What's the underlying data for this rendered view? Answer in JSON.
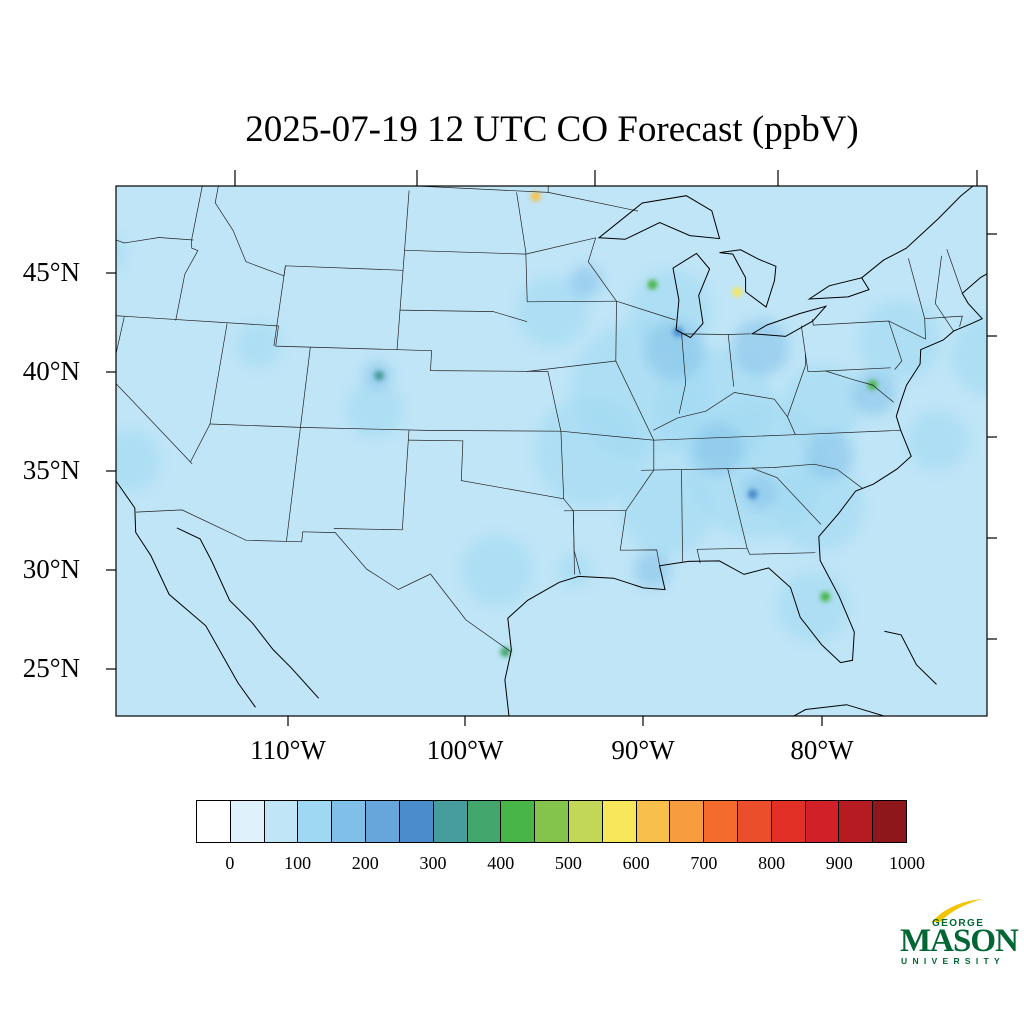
{
  "title": "2025-07-19 12 UTC CO Forecast (ppbV)",
  "map": {
    "projection": "Lambert conformal",
    "background_color": "#bfe5f7",
    "lon_range": [
      -125,
      -65
    ],
    "lat_range": [
      22,
      50
    ],
    "lat_labels": [
      "45°N",
      "40°N",
      "35°N",
      "30°N",
      "25°N"
    ],
    "lon_labels": [
      "110°W",
      "100°W",
      "90°W",
      "80°W"
    ]
  },
  "chart_data": {
    "type": "heatmap",
    "title": "2025-07-19 12 UTC CO Forecast (ppbV)",
    "variable": "CO",
    "units": "ppbV",
    "field_range": [
      50,
      300
    ],
    "hotspots": [
      {
        "lon": -84.0,
        "lat": 43.8,
        "level": 550
      },
      {
        "lon": -77.0,
        "lat": 38.9,
        "level": 400
      },
      {
        "lon": -81.3,
        "lat": 28.5,
        "level": 400
      },
      {
        "lon": -89.0,
        "lat": 44.3,
        "level": 400
      },
      {
        "lon": -104.9,
        "lat": 39.7,
        "level": 300
      },
      {
        "lon": -96.0,
        "lat": 48.8,
        "level": 600
      },
      {
        "lon": -87.7,
        "lat": 41.9,
        "level": 250
      },
      {
        "lon": -84.4,
        "lat": 33.7,
        "level": 250
      },
      {
        "lon": -97.5,
        "lat": 25.9,
        "level": 350
      }
    ]
  },
  "colorbar": {
    "levels": [
      0,
      50,
      100,
      150,
      200,
      250,
      300,
      350,
      400,
      450,
      500,
      550,
      600,
      650,
      700,
      750,
      800,
      850,
      900,
      950,
      1000
    ],
    "colors": [
      "#ffffff",
      "#dff1fb",
      "#bfe5f7",
      "#9fd8f2",
      "#80c0e8",
      "#66a6db",
      "#4a8ccc",
      "#479c9e",
      "#43a66c",
      "#48b548",
      "#84c44c",
      "#c2d658",
      "#f6e85a",
      "#f8c04a",
      "#f89c40",
      "#f36c2e",
      "#ea4e2a",
      "#e33027",
      "#d12027",
      "#b61b22",
      "#8e171b"
    ],
    "labels": [
      "0",
      "100",
      "200",
      "300",
      "400",
      "500",
      "600",
      "700",
      "800",
      "900",
      "1000"
    ]
  },
  "logo": {
    "line1": "GEORGE",
    "line2": "MASON",
    "line3": "UNIVERSITY",
    "color": "#006633",
    "accent_color": "#f2c300"
  }
}
